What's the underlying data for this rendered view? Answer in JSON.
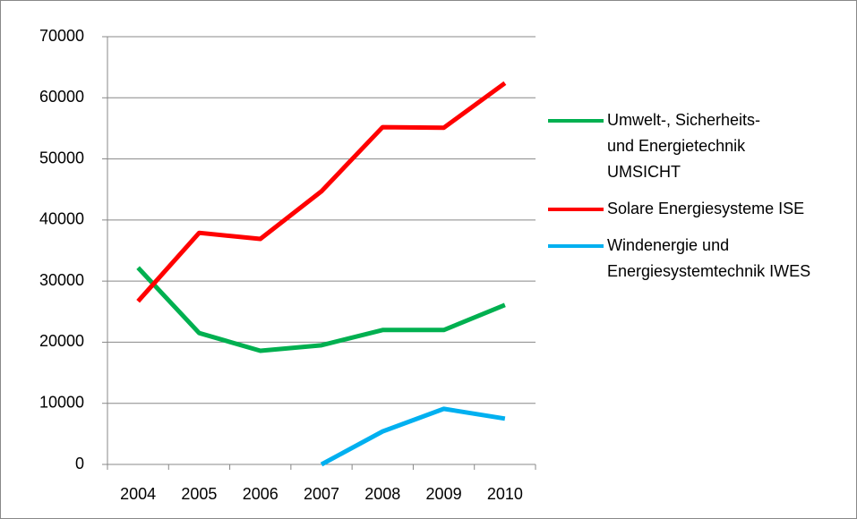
{
  "chart_data": {
    "type": "line",
    "categories": [
      "2004",
      "2005",
      "2006",
      "2007",
      "2008",
      "2009",
      "2010"
    ],
    "series": [
      {
        "name": "Umwelt-, Sicherheits- und Energietechnik UMSICHT",
        "color": "#00b050",
        "values": [
          32200,
          21500,
          18600,
          19500,
          22000,
          22000,
          26100
        ]
      },
      {
        "name": "Solare Energiesysteme ISE",
        "color": "#ff0000",
        "values": [
          26700,
          37900,
          36900,
          44700,
          55200,
          55100,
          62400
        ]
      },
      {
        "name": "Windenergie und Energiesystemtechnik IWES",
        "color": "#00b0f0",
        "values": [
          null,
          null,
          null,
          0,
          5400,
          9100,
          7500
        ]
      }
    ],
    "ylim": [
      0,
      70000
    ],
    "yticks": [
      0,
      10000,
      20000,
      30000,
      40000,
      50000,
      60000,
      70000
    ],
    "grid": true,
    "legend": "right"
  }
}
